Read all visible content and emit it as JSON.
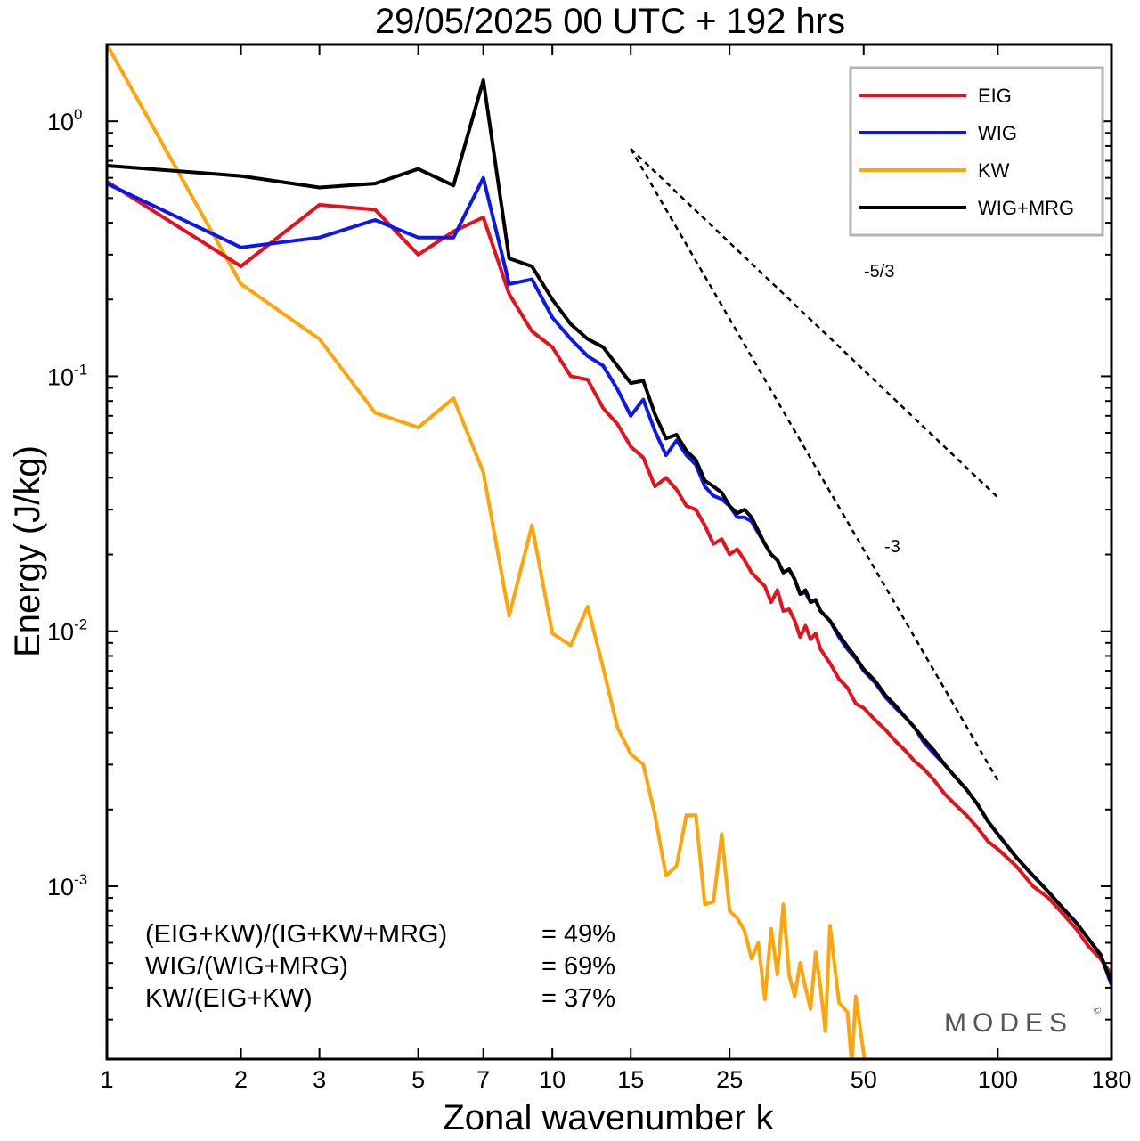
{
  "chart_data": {
    "type": "line",
    "title": "29/05/2025  00 UTC  + 192 hrs",
    "xlabel": "Zonal wavenumber k",
    "ylabel": "Energy (J/kg)",
    "xscale": "log",
    "yscale": "log",
    "xlim": [
      1,
      180
    ],
    "ylim": [
      0.00021,
      2.0
    ],
    "x_ticks": [
      1,
      2,
      3,
      5,
      7,
      10,
      15,
      25,
      50,
      100,
      180
    ],
    "y_ticks": [
      {
        "base": "10",
        "exp": "0",
        "value": 1
      },
      {
        "base": "10",
        "exp": "-1",
        "value": 0.1
      },
      {
        "base": "10",
        "exp": "-2",
        "value": 0.01
      },
      {
        "base": "10",
        "exp": "-3",
        "value": 0.001
      }
    ],
    "legend_position": "top-right",
    "series": [
      {
        "name": "EIG",
        "color": "#e8101c",
        "points": [
          [
            1,
            0.58
          ],
          [
            2,
            0.27
          ],
          [
            3,
            0.47
          ],
          [
            4,
            0.45
          ],
          [
            5,
            0.3
          ],
          [
            6,
            0.37
          ],
          [
            7,
            0.42
          ],
          [
            8,
            0.21
          ],
          [
            9,
            0.15
          ],
          [
            10,
            0.13
          ],
          [
            11,
            0.1
          ],
          [
            12,
            0.097
          ],
          [
            13,
            0.075
          ],
          [
            14,
            0.065
          ],
          [
            15,
            0.053
          ],
          [
            16,
            0.048
          ],
          [
            17,
            0.037
          ],
          [
            18,
            0.04
          ],
          [
            19,
            0.036
          ],
          [
            20,
            0.031
          ],
          [
            21,
            0.03
          ],
          [
            22,
            0.026
          ],
          [
            23,
            0.022
          ],
          [
            24,
            0.023
          ],
          [
            25,
            0.02
          ],
          [
            26,
            0.021
          ],
          [
            27,
            0.019
          ],
          [
            28,
            0.017
          ],
          [
            30,
            0.015
          ],
          [
            31,
            0.013
          ],
          [
            32,
            0.0145
          ],
          [
            33,
            0.012
          ],
          [
            34,
            0.0122
          ],
          [
            35,
            0.011
          ],
          [
            36,
            0.0095
          ],
          [
            37,
            0.0105
          ],
          [
            38,
            0.0093
          ],
          [
            39,
            0.0098
          ],
          [
            40,
            0.0085
          ],
          [
            42,
            0.0075
          ],
          [
            44,
            0.0065
          ],
          [
            46,
            0.006
          ],
          [
            48,
            0.0052
          ],
          [
            50,
            0.005
          ],
          [
            53,
            0.0045
          ],
          [
            56,
            0.0041
          ],
          [
            59,
            0.0037
          ],
          [
            62,
            0.0034
          ],
          [
            65,
            0.0031
          ],
          [
            68,
            0.0029
          ],
          [
            72,
            0.0026
          ],
          [
            76,
            0.0023
          ],
          [
            80,
            0.0021
          ],
          [
            85,
            0.0019
          ],
          [
            90,
            0.0017
          ],
          [
            95,
            0.0015
          ],
          [
            100,
            0.0014
          ],
          [
            110,
            0.0012
          ],
          [
            120,
            0.001
          ],
          [
            130,
            0.0009
          ],
          [
            140,
            0.00078
          ],
          [
            150,
            0.00068
          ],
          [
            160,
            0.00058
          ],
          [
            170,
            0.00052
          ],
          [
            180,
            0.00045
          ]
        ]
      },
      {
        "name": "WIG",
        "color": "#0c17f0",
        "points": [
          [
            1,
            0.57
          ],
          [
            2,
            0.32
          ],
          [
            3,
            0.35
          ],
          [
            4,
            0.41
          ],
          [
            5,
            0.35
          ],
          [
            6,
            0.35
          ],
          [
            7,
            0.6
          ],
          [
            8,
            0.23
          ],
          [
            9,
            0.24
          ],
          [
            10,
            0.17
          ],
          [
            11,
            0.14
          ],
          [
            12,
            0.12
          ],
          [
            13,
            0.11
          ],
          [
            14,
            0.089
          ],
          [
            15,
            0.07
          ],
          [
            16,
            0.081
          ],
          [
            17,
            0.061
          ],
          [
            18,
            0.049
          ],
          [
            19,
            0.056
          ],
          [
            20,
            0.049
          ],
          [
            21,
            0.045
          ],
          [
            22,
            0.037
          ],
          [
            23,
            0.034
          ],
          [
            24,
            0.033
          ],
          [
            25,
            0.031
          ],
          [
            26,
            0.028
          ],
          [
            27,
            0.028
          ],
          [
            28,
            0.027
          ],
          [
            30,
            0.022
          ],
          [
            31,
            0.02
          ],
          [
            32,
            0.019
          ],
          [
            33,
            0.017
          ],
          [
            34,
            0.0175
          ],
          [
            35,
            0.016
          ],
          [
            36,
            0.014
          ],
          [
            37,
            0.0142
          ],
          [
            38,
            0.013
          ],
          [
            39,
            0.0132
          ],
          [
            40,
            0.012
          ],
          [
            42,
            0.011
          ],
          [
            44,
            0.0095
          ],
          [
            46,
            0.0085
          ],
          [
            48,
            0.0078
          ],
          [
            50,
            0.007
          ],
          [
            53,
            0.0063
          ],
          [
            56,
            0.0055
          ],
          [
            59,
            0.005
          ],
          [
            62,
            0.0046
          ],
          [
            65,
            0.0042
          ],
          [
            68,
            0.0037
          ],
          [
            72,
            0.0033
          ],
          [
            76,
            0.003
          ],
          [
            80,
            0.0027
          ],
          [
            85,
            0.0024
          ],
          [
            90,
            0.0021
          ],
          [
            95,
            0.0018
          ],
          [
            100,
            0.0016
          ],
          [
            110,
            0.0013
          ],
          [
            120,
            0.0011
          ],
          [
            130,
            0.00095
          ],
          [
            140,
            0.00082
          ],
          [
            150,
            0.00072
          ],
          [
            160,
            0.00062
          ],
          [
            170,
            0.00054
          ],
          [
            180,
            0.00041
          ]
        ]
      },
      {
        "name": "KW",
        "color": "#ffa50a",
        "points": [
          [
            1,
            2.0
          ],
          [
            2,
            0.23
          ],
          [
            3,
            0.14
          ],
          [
            4,
            0.072
          ],
          [
            5,
            0.063
          ],
          [
            6,
            0.082
          ],
          [
            7,
            0.042
          ],
          [
            8,
            0.0115
          ],
          [
            9,
            0.026
          ],
          [
            10,
            0.0098
          ],
          [
            11,
            0.0088
          ],
          [
            12,
            0.0125
          ],
          [
            13,
            0.0072
          ],
          [
            14,
            0.0042
          ],
          [
            15,
            0.0033
          ],
          [
            16,
            0.003
          ],
          [
            17,
            0.0019
          ],
          [
            18,
            0.0011
          ],
          [
            19,
            0.0012
          ],
          [
            20,
            0.0019
          ],
          [
            21,
            0.0019
          ],
          [
            22,
            0.00085
          ],
          [
            23,
            0.00087
          ],
          [
            24,
            0.0016
          ],
          [
            25,
            0.0008
          ],
          [
            26,
            0.00075
          ],
          [
            27,
            0.00067
          ],
          [
            28,
            0.00052
          ],
          [
            29,
            0.0006
          ],
          [
            30,
            0.00036
          ],
          [
            31,
            0.00068
          ],
          [
            32,
            0.00045
          ],
          [
            33,
            0.00085
          ],
          [
            34,
            0.00045
          ],
          [
            35,
            0.00037
          ],
          [
            36,
            0.0005
          ],
          [
            37,
            0.0004
          ],
          [
            38,
            0.00033
          ],
          [
            39,
            0.00055
          ],
          [
            40,
            0.0004
          ],
          [
            41,
            0.00027
          ],
          [
            42,
            0.0007
          ],
          [
            44,
            0.00035
          ],
          [
            46,
            0.00032
          ],
          [
            47,
            0.0002
          ],
          [
            48,
            0.00037
          ],
          [
            50,
            0.00022
          ],
          [
            52,
            0.00015
          ]
        ]
      },
      {
        "name": "WIG+MRG",
        "color": "#000000",
        "points": [
          [
            1,
            0.67
          ],
          [
            2,
            0.61
          ],
          [
            3,
            0.55
          ],
          [
            4,
            0.57
          ],
          [
            5,
            0.65
          ],
          [
            6,
            0.56
          ],
          [
            7,
            1.45
          ],
          [
            8,
            0.29
          ],
          [
            9,
            0.27
          ],
          [
            10,
            0.2
          ],
          [
            11,
            0.16
          ],
          [
            12,
            0.14
          ],
          [
            13,
            0.13
          ],
          [
            14,
            0.11
          ],
          [
            15,
            0.094
          ],
          [
            16,
            0.096
          ],
          [
            17,
            0.071
          ],
          [
            18,
            0.057
          ],
          [
            19,
            0.059
          ],
          [
            20,
            0.051
          ],
          [
            21,
            0.047
          ],
          [
            22,
            0.039
          ],
          [
            23,
            0.037
          ],
          [
            24,
            0.035
          ],
          [
            25,
            0.031
          ],
          [
            26,
            0.029
          ],
          [
            27,
            0.03
          ],
          [
            28,
            0.028
          ],
          [
            30,
            0.022
          ],
          [
            31,
            0.02
          ],
          [
            32,
            0.019
          ],
          [
            33,
            0.017
          ],
          [
            34,
            0.0175
          ],
          [
            35,
            0.016
          ],
          [
            36,
            0.014
          ],
          [
            37,
            0.0145
          ],
          [
            38,
            0.013
          ],
          [
            39,
            0.0133
          ],
          [
            40,
            0.012
          ],
          [
            42,
            0.011
          ],
          [
            44,
            0.0097
          ],
          [
            46,
            0.0087
          ],
          [
            48,
            0.0079
          ],
          [
            50,
            0.0071
          ],
          [
            53,
            0.0064
          ],
          [
            56,
            0.0056
          ],
          [
            59,
            0.0051
          ],
          [
            62,
            0.0046
          ],
          [
            65,
            0.0042
          ],
          [
            68,
            0.0038
          ],
          [
            72,
            0.0034
          ],
          [
            76,
            0.003
          ],
          [
            80,
            0.0027
          ],
          [
            85,
            0.0024
          ],
          [
            90,
            0.0021
          ],
          [
            95,
            0.0018
          ],
          [
            100,
            0.0016
          ],
          [
            110,
            0.0013
          ],
          [
            120,
            0.0011
          ],
          [
            130,
            0.00095
          ],
          [
            140,
            0.00082
          ],
          [
            150,
            0.00072
          ],
          [
            160,
            0.00062
          ],
          [
            170,
            0.00054
          ],
          [
            180,
            0.00042
          ]
        ]
      }
    ],
    "reference_slopes": [
      {
        "label": "-5/3",
        "start": [
          15,
          0.78
        ],
        "end": [
          100,
          0.0335
        ]
      },
      {
        "label": "-3",
        "start": [
          15,
          0.78
        ],
        "end": [
          100,
          0.0026
        ]
      }
    ]
  },
  "stats": [
    {
      "label": "(EIG+KW)/(IG+KW+MRG)",
      "value": "= 49%"
    },
    {
      "label": "WIG/(WIG+MRG)",
      "value": "= 69%"
    },
    {
      "label": "KW/(EIG+KW)",
      "value": "= 37%"
    }
  ],
  "logo": {
    "text": "MODES",
    "mark": "©"
  }
}
